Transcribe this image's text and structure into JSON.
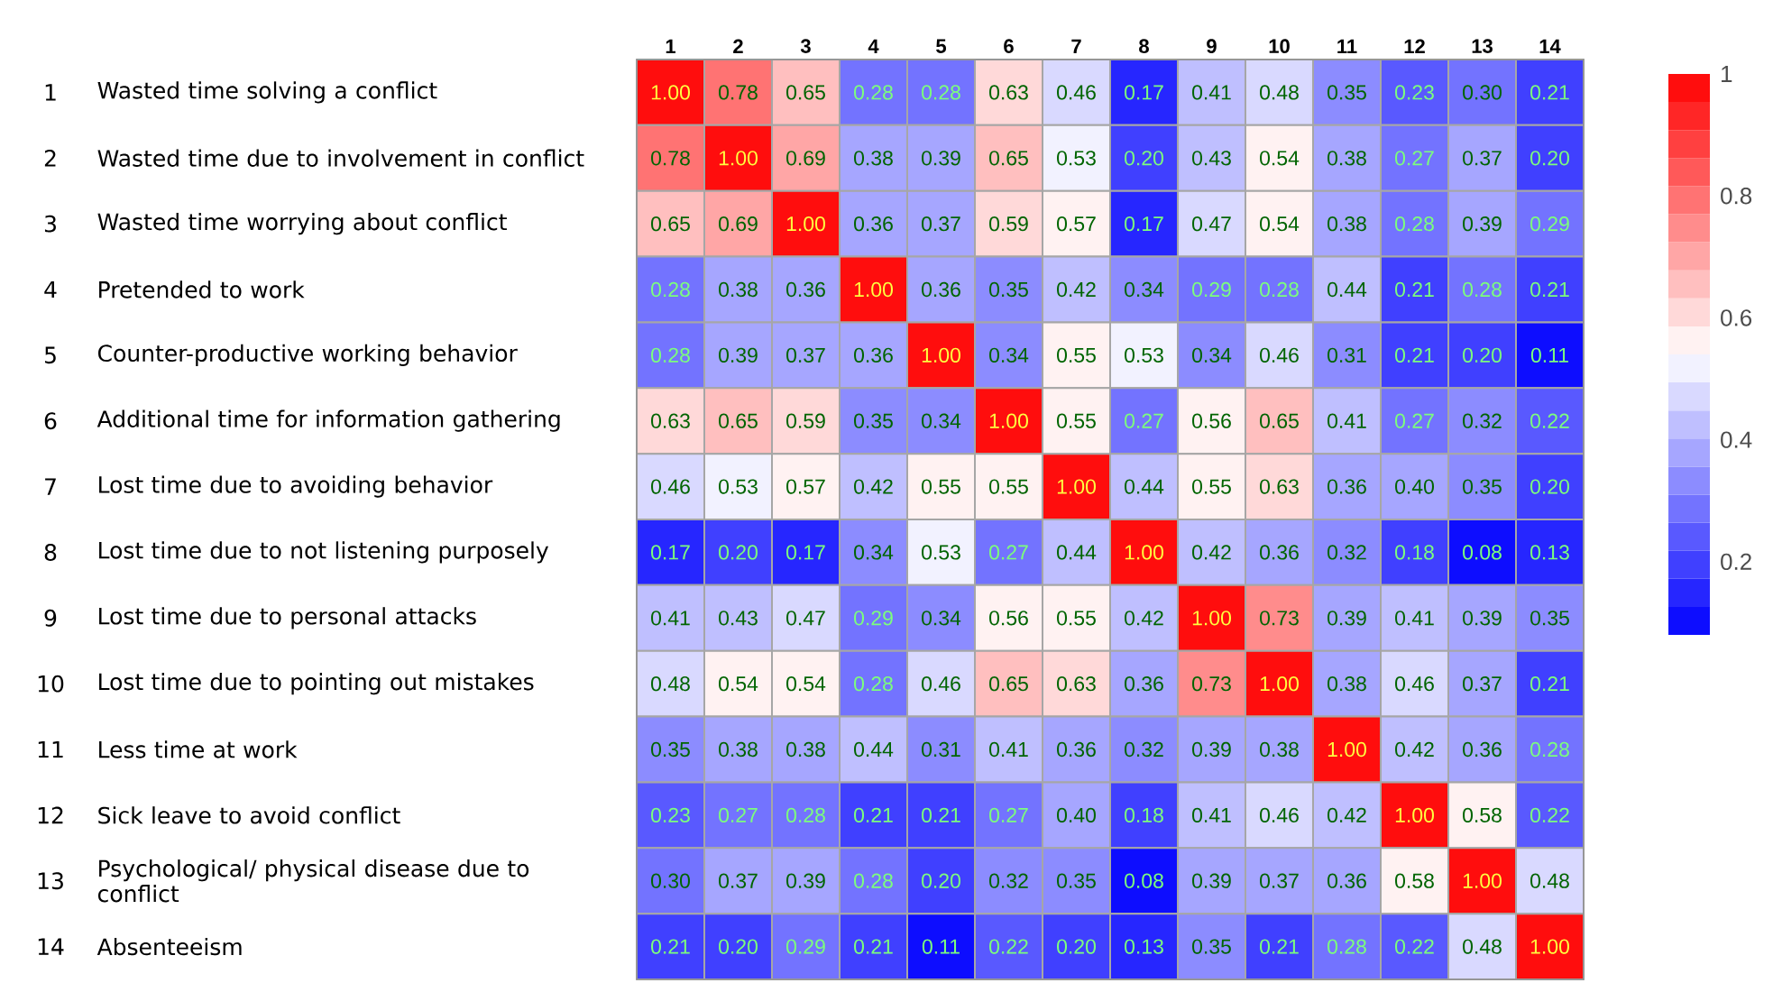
{
  "chart_data": {
    "type": "heatmap",
    "categories": [
      "1",
      "2",
      "3",
      "4",
      "5",
      "6",
      "7",
      "8",
      "9",
      "10",
      "11",
      "12",
      "13",
      "14"
    ],
    "y_categories": [
      "Wasted time solving a conflict",
      "Wasted time due to involvement in conflict",
      "Wasted time worrying about conflict",
      "Pretended to work",
      "Counter-productive working behavior",
      "Additional time for information gathering",
      "Lost time due to avoiding behavior",
      "Lost time due to not listening purposely",
      "Lost time due to personal attacks",
      "Lost time due to pointing out mistakes",
      "Less time at work",
      "Sick leave to avoid conflict",
      "Psychological/ physical disease due to conflict",
      "Absenteeism"
    ],
    "y2_categories": [
      "1",
      "2",
      "3",
      "4",
      "5",
      "6",
      "7",
      "8",
      "9",
      "10",
      "11",
      "12",
      "13",
      "14"
    ],
    "cells": [
      [
        1.0,
        0.78,
        0.65,
        0.28,
        0.28,
        0.63,
        0.46,
        0.17,
        0.41,
        0.48,
        0.35,
        0.23,
        0.3,
        0.21
      ],
      [
        0.78,
        1.0,
        0.69,
        0.38,
        0.39,
        0.65,
        0.53,
        0.2,
        0.43,
        0.54,
        0.38,
        0.27,
        0.37,
        0.2
      ],
      [
        0.65,
        0.69,
        1.0,
        0.36,
        0.37,
        0.59,
        0.57,
        0.17,
        0.47,
        0.54,
        0.38,
        0.28,
        0.39,
        0.29
      ],
      [
        0.28,
        0.38,
        0.36,
        1.0,
        0.36,
        0.35,
        0.42,
        0.34,
        0.29,
        0.28,
        0.44,
        0.21,
        0.28,
        0.21
      ],
      [
        0.28,
        0.39,
        0.37,
        0.36,
        1.0,
        0.34,
        0.55,
        0.53,
        0.34,
        0.46,
        0.31,
        0.21,
        0.2,
        0.11
      ],
      [
        0.63,
        0.65,
        0.59,
        0.35,
        0.34,
        1.0,
        0.55,
        0.27,
        0.56,
        0.65,
        0.41,
        0.27,
        0.32,
        0.22
      ],
      [
        0.46,
        0.53,
        0.57,
        0.42,
        0.55,
        0.55,
        1.0,
        0.44,
        0.55,
        0.63,
        0.36,
        0.4,
        0.35,
        0.2
      ],
      [
        0.17,
        0.2,
        0.17,
        0.34,
        0.53,
        0.27,
        0.44,
        1.0,
        0.42,
        0.36,
        0.32,
        0.18,
        0.08,
        0.13
      ],
      [
        0.41,
        0.43,
        0.47,
        0.29,
        0.34,
        0.56,
        0.55,
        0.42,
        1.0,
        0.73,
        0.39,
        0.41,
        0.39,
        0.35
      ],
      [
        0.48,
        0.54,
        0.54,
        0.28,
        0.46,
        0.65,
        0.63,
        0.36,
        0.73,
        1.0,
        0.38,
        0.46,
        0.37,
        0.21
      ],
      [
        0.35,
        0.38,
        0.38,
        0.44,
        0.31,
        0.41,
        0.36,
        0.32,
        0.39,
        0.38,
        1.0,
        0.42,
        0.36,
        0.28
      ],
      [
        0.23,
        0.27,
        0.28,
        0.21,
        0.21,
        0.27,
        0.4,
        0.18,
        0.41,
        0.46,
        0.42,
        1.0,
        0.58,
        0.22
      ],
      [
        0.3,
        0.37,
        0.39,
        0.28,
        0.2,
        0.32,
        0.35,
        0.08,
        0.39,
        0.37,
        0.36,
        0.58,
        1.0,
        0.48
      ],
      [
        0.21,
        0.2,
        0.29,
        0.21,
        0.11,
        0.22,
        0.2,
        0.13,
        0.35,
        0.21,
        0.28,
        0.22,
        0.48,
        1.0
      ]
    ],
    "cell_labels": [
      [
        "1.00",
        "0.78",
        "0.65",
        "0.28",
        "0.28",
        "0.63",
        "0.46",
        "0.17",
        "0.41",
        "0.48",
        "0.35",
        "0.23",
        "0.30",
        "0.21"
      ],
      [
        "0.78",
        "1.00",
        "0.69",
        "0.38",
        "0.39",
        "0.65",
        "0.53",
        "0.20",
        "0.43",
        "0.54",
        "0.38",
        "0.27",
        "0.37",
        "0.20"
      ],
      [
        "0.65",
        "0.69",
        "1.00",
        "0.36",
        "0.37",
        "0.59",
        "0.57",
        "0.17",
        "0.47",
        "0.54",
        "0.38",
        "0.28",
        "0.39",
        "0.29"
      ],
      [
        "0.28",
        "0.38",
        "0.36",
        "1.00",
        "0.36",
        "0.35",
        "0.42",
        "0.34",
        "0.29",
        "0.28",
        "0.44",
        "0.21",
        "0.28",
        "0.21"
      ],
      [
        "0.28",
        "0.39",
        "0.37",
        "0.36",
        "1.00",
        "0.34",
        "0.55",
        "0.53",
        "0.34",
        "0.46",
        "0.31",
        "0.21",
        "0.20",
        "0.11"
      ],
      [
        "0.63",
        "0.65",
        "0.59",
        "0.35",
        "0.34",
        "1.00",
        "0.55",
        "0.27",
        "0.56",
        "0.65",
        "0.41",
        "0.27",
        "0.32",
        "0.22"
      ],
      [
        "0.46",
        "0.53",
        "0.57",
        "0.42",
        "0.55",
        "0.55",
        "1.00",
        "0.44",
        "0.55",
        "0.63",
        "0.36",
        "0.40",
        "0.35",
        "0.20"
      ],
      [
        "0.17",
        "0.20",
        "0.17",
        "0.34",
        "0.53",
        "0.27",
        "0.44",
        "1.00",
        "0.42",
        "0.36",
        "0.32",
        "0.18",
        "0.08",
        "0.13"
      ],
      [
        "0.41",
        "0.43",
        "0.47",
        "0.29",
        "0.34",
        "0.56",
        "0.55",
        "0.42",
        "1.00",
        "0.73",
        "0.39",
        "0.41",
        "0.39",
        "0.35"
      ],
      [
        "0.48",
        "0.54",
        "0.54",
        "0.28",
        "0.46",
        "0.65",
        "0.63",
        "0.36",
        "0.73",
        "1.00",
        "0.38",
        "0.46",
        "0.37",
        "0.21"
      ],
      [
        "0.35",
        "0.38",
        "0.38",
        "0.44",
        "0.31",
        "0.41",
        "0.36",
        "0.32",
        "0.39",
        "0.38",
        "1.00",
        "0.42",
        "0.36",
        "0.28"
      ],
      [
        "0.23",
        "0.27",
        "0.28",
        "0.21",
        "0.21",
        "0.27",
        "0.40",
        "0.18",
        "0.41",
        "0.46",
        "0.42",
        "1.00",
        "0.58",
        "0.22"
      ],
      [
        "0.30",
        "0.37",
        "0.39",
        "0.28",
        "0.20",
        "0.32",
        "0.35",
        "0.08",
        "0.39",
        "0.37",
        "0.36",
        "0.58",
        "1.00",
        "0.48"
      ],
      [
        "0.21",
        "0.20",
        "0.29",
        "0.21",
        "0.11",
        "0.22",
        "0.20",
        "0.13",
        "0.35",
        "0.21",
        "0.28",
        "0.22",
        "0.48",
        "1.00"
      ]
    ],
    "clim": [
      0.08,
      1
    ],
    "cticks": [
      {
        "value": 0.2,
        "label": "0.2"
      },
      {
        "value": 0.4,
        "label": "0.4"
      },
      {
        "value": 0.6,
        "label": "0.6"
      },
      {
        "value": 0.8,
        "label": "0.8"
      },
      {
        "value": 1,
        "label": "1"
      }
    ]
  }
}
